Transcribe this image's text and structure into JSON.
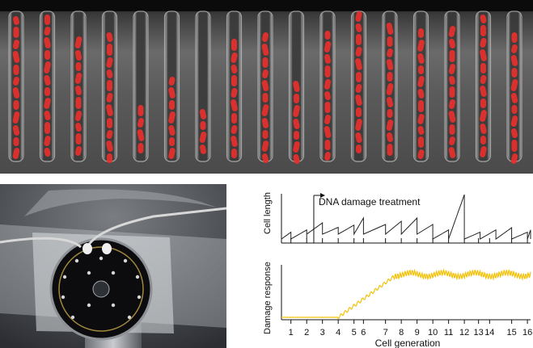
{
  "panels": {
    "top": {
      "kind": "microscopy",
      "description_colors": {
        "background": "#2a2a2a",
        "cells": "#e8302c"
      }
    },
    "bottom_left": {
      "kind": "photo-device"
    },
    "bottom_right": {
      "kind": "plots"
    }
  },
  "chart_data": [
    {
      "type": "line",
      "ylabel": "Cell length",
      "annotation": "DNA damage treatment",
      "line_color": "#222222",
      "x_range": [
        0.4,
        16.2
      ],
      "treatment_at_generation": 2.45,
      "division_generations": [
        1,
        2,
        3,
        4,
        5,
        5.6,
        7,
        8,
        9,
        10,
        11,
        12,
        13,
        14,
        15,
        16
      ]
    },
    {
      "type": "line",
      "ylabel": "Damage response",
      "xlabel": "Cell generation",
      "line_color": "#f2c20a",
      "x_range": [
        0.4,
        16.2
      ],
      "x_ticks": [
        {
          "v": 1,
          "label": "1"
        },
        {
          "v": 2,
          "label": "2"
        },
        {
          "v": 3,
          "label": "3"
        },
        {
          "v": 4,
          "label": "4"
        },
        {
          "v": 5,
          "label": "5"
        },
        {
          "v": 5.6,
          "label": "6"
        },
        {
          "v": 7,
          "label": "7"
        },
        {
          "v": 8,
          "label": "8"
        },
        {
          "v": 9,
          "label": "9"
        },
        {
          "v": 10,
          "label": "10"
        },
        {
          "v": 11,
          "label": "11"
        },
        {
          "v": 12,
          "label": "12"
        },
        {
          "v": 12.9,
          "label": "13"
        },
        {
          "v": 13.6,
          "label": "14"
        },
        {
          "v": 15,
          "label": "15"
        },
        {
          "v": 16,
          "label": "16"
        }
      ]
    }
  ],
  "labels": {
    "annotation": "DNA damage treatment",
    "ylabel_top": "Cell length",
    "ylabel_bottom": "Damage response",
    "xlabel": "Cell generation"
  }
}
